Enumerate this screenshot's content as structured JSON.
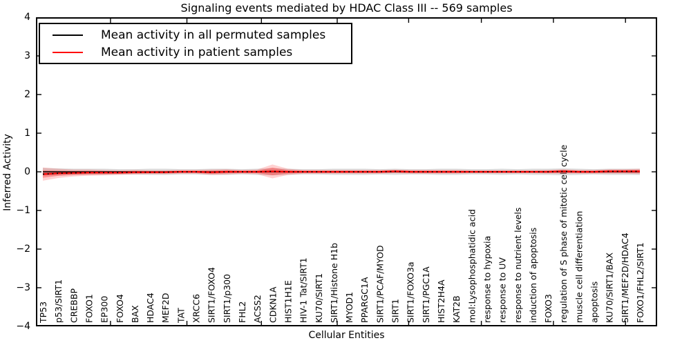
{
  "chart_data": {
    "type": "line",
    "title": "Signaling events mediated by HDAC Class III -- 569 samples",
    "xlabel": "Cellular Entities",
    "ylabel": "Inferred Activity",
    "ylim": [
      -4,
      4
    ],
    "ytick_values": [
      4,
      3,
      2,
      1,
      0,
      -1,
      -2,
      -3,
      -4
    ],
    "ytick_labels": [
      "4",
      "3",
      "2",
      "1",
      "0",
      "−1",
      "−2",
      "−3",
      "−4"
    ],
    "grid": false,
    "legend_position": "upper left",
    "frame_color": "#000000",
    "categories": [
      "TP53",
      "p53/SIRT1",
      "CREBBP",
      "FOXO1",
      "EP300",
      "FOXO4",
      "BAX",
      "HDAC4",
      "MEF2D",
      "TAT",
      "XRCC6",
      "SIRT1/FOXO4",
      "SIRT1/p300",
      "FHL2",
      "ACSS2",
      "CDKN1A",
      "HIST1H1E",
      "HIV-1 Tat/SIRT1",
      "KU70/SIRT1",
      "SIRT1/Histone H1b",
      "MYOD1",
      "PPARGC1A",
      "SIRT1/PCAF/MYOD",
      "SIRT1",
      "SIRT1/FOXO3a",
      "SIRT1/PGC1A",
      "HIST2H4A",
      "KAT2B",
      "mol:Lysophosphatidic acid",
      "response to hypoxia",
      "response to UV",
      "response to nutrient levels",
      "induction of apoptosis",
      "FOXO3",
      "regulation of S phase of mitotic cell cycle",
      "muscle cell differentiation",
      "apoptosis",
      "KU70/SIRT1/BAX",
      "SIRT1/MEF2D/HDAC4",
      "FOXO1/FHL2/SIRT1"
    ],
    "series": [
      {
        "name": "Mean activity in all permuted samples",
        "color": "#000000",
        "band_color": "#999999",
        "values": [
          0,
          0,
          0,
          0,
          0,
          0,
          0,
          0,
          0,
          0,
          0,
          0,
          0,
          0,
          0,
          0,
          0,
          0,
          0,
          0,
          0,
          0,
          0,
          0,
          0,
          0,
          0,
          0,
          0,
          0,
          0,
          0,
          0,
          0,
          0,
          0,
          0,
          0,
          0,
          0
        ],
        "band_halfwidth": [
          0.1,
          0.09,
          0.08,
          0.08,
          0.08,
          0.07,
          0.07,
          0.08,
          0.08,
          0.07,
          0.07,
          0.08,
          0.08,
          0.07,
          0.08,
          0.09,
          0.08,
          0.07,
          0.07,
          0.08,
          0.08,
          0.08,
          0.07,
          0.08,
          0.07,
          0.07,
          0.08,
          0.08,
          0.07,
          0.07,
          0.08,
          0.07,
          0.08,
          0.08,
          0.09,
          0.08,
          0.07,
          0.08,
          0.08,
          0.08
        ]
      },
      {
        "name": "Mean activity in patient samples",
        "color": "#ff0000",
        "band_color": "#ff0000",
        "values": [
          -0.06,
          -0.04,
          -0.03,
          -0.02,
          -0.02,
          -0.02,
          -0.01,
          -0.01,
          -0.01,
          0,
          0,
          -0.01,
          0,
          0,
          0,
          0.01,
          0,
          0,
          0,
          0,
          0,
          0,
          0,
          0.01,
          0,
          0,
          0,
          0,
          0,
          0,
          0,
          0,
          0,
          0,
          0.01,
          0,
          0,
          0.01,
          0.01,
          0.01
        ],
        "band_halfwidth": [
          0.17,
          0.12,
          0.09,
          0.08,
          0.07,
          0.06,
          0.06,
          0.05,
          0.05,
          0.05,
          0.05,
          0.07,
          0.07,
          0.05,
          0.06,
          0.18,
          0.08,
          0.05,
          0.05,
          0.05,
          0.05,
          0.05,
          0.05,
          0.05,
          0.05,
          0.05,
          0.05,
          0.05,
          0.04,
          0.04,
          0.04,
          0.04,
          0.04,
          0.05,
          0.06,
          0.05,
          0.05,
          0.06,
          0.06,
          0.07
        ]
      }
    ]
  }
}
